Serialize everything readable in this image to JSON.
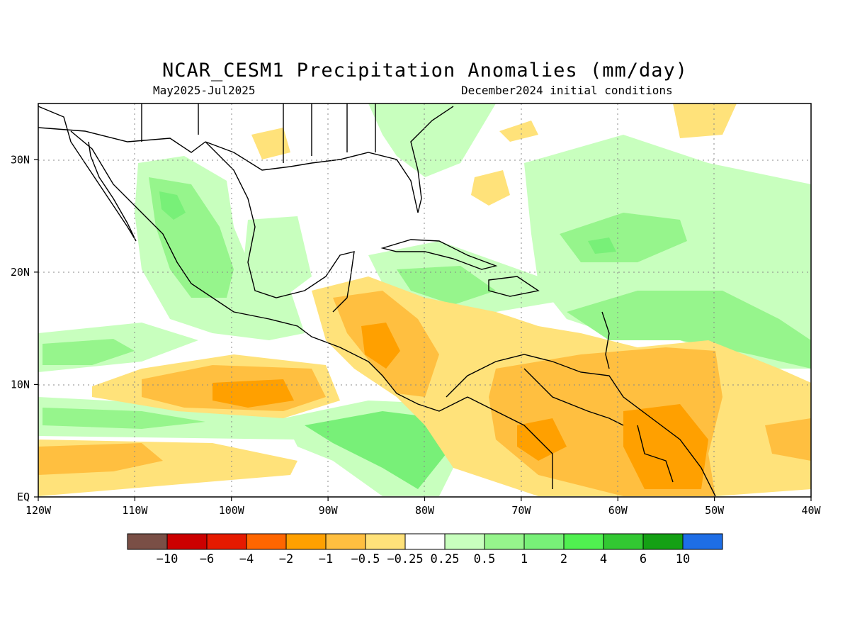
{
  "title": "NCAR_CESM1 Precipitation Anomalies (mm/day)",
  "period": "May2025-Jul2025",
  "init": "December2024 initial conditions",
  "map": {
    "lon_range": [
      -120,
      -40
    ],
    "lat_range": [
      0,
      35
    ],
    "lon_ticks": [
      "120W",
      "110W",
      "100W",
      "90W",
      "80W",
      "70W",
      "60W",
      "50W",
      "40W"
    ],
    "lat_ticks": [
      "EQ",
      "10N",
      "20N",
      "30N"
    ],
    "grid": "dotted"
  },
  "colorbar": {
    "colors": [
      "#7a4f46",
      "#cc0000",
      "#e61a00",
      "#ff6600",
      "#ffa000",
      "#ffbf40",
      "#ffe27a",
      "#ffffff",
      "#c8ffbe",
      "#96f58c",
      "#78f078",
      "#50f050",
      "#32c832",
      "#14a014",
      "#1e6ee6"
    ],
    "labels": [
      "-10",
      "-6",
      "-4",
      "-2",
      "-1",
      "-0.5",
      "-0.25",
      "0.25",
      "0.5",
      "1",
      "2",
      "4",
      "6",
      "10"
    ]
  },
  "palette": {
    "dry1": "#ffe27a",
    "dry2": "#ffbf40",
    "dry3": "#ffa000",
    "wet1": "#c8ffbe",
    "wet2": "#96f58c",
    "wet3": "#78f078"
  }
}
